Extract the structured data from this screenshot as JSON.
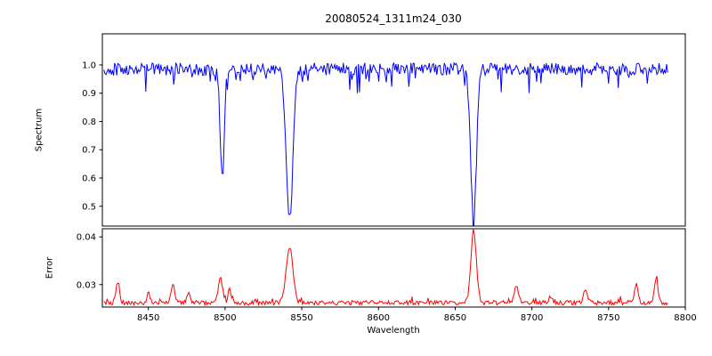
{
  "figure": {
    "title": "20080524_1311m24_030",
    "xlabel": "Wavelength",
    "background": "#ffffff",
    "frame_color": "#000000"
  },
  "x_axis": {
    "label": "Wavelength",
    "tick_values": [
      8450,
      8500,
      8550,
      8600,
      8650,
      8700,
      8750,
      8800
    ],
    "tick_labels": [
      "8450",
      "8500",
      "8550",
      "8600",
      "8650",
      "8700",
      "8750",
      "8800"
    ]
  },
  "chart_data": [
    {
      "type": "line",
      "panel": "spectrum",
      "ylabel": "Spectrum",
      "color": "#0000ff",
      "xlim": [
        8420,
        8800
      ],
      "ylim": [
        0.43,
        1.11
      ],
      "ytick_values": [
        0.5,
        0.6,
        0.7,
        0.8,
        0.9,
        1.0
      ],
      "ytick_labels": [
        "0.5",
        "0.6",
        "0.7",
        "0.8",
        "0.9",
        "1.0"
      ],
      "x_start": 8421,
      "x_end": 8789,
      "x_step": 0.7,
      "continuum": 0.985,
      "noise_amplitude": 0.045,
      "dip_probability": 0.1,
      "dip_max": 0.09,
      "absorption_lines": [
        {
          "center": 8498,
          "depth": 0.35,
          "width": 1.3
        },
        {
          "center": 8542,
          "depth": 0.53,
          "width": 2.2
        },
        {
          "center": 8662,
          "depth": 0.52,
          "width": 1.9
        }
      ]
    },
    {
      "type": "line",
      "panel": "error",
      "ylabel": "Error",
      "color": "#ff0000",
      "xlim": [
        8420,
        8800
      ],
      "ylim": [
        0.0253,
        0.0417
      ],
      "ytick_values": [
        0.03,
        0.04
      ],
      "ytick_labels": [
        "0.03",
        "0.04"
      ],
      "x_start": 8421,
      "x_end": 8789,
      "x_step": 0.7,
      "baseline": 0.0262,
      "noise_amplitude": 0.0009,
      "spike_probability": 0.06,
      "spike_max": 0.0012,
      "peaks": [
        {
          "center": 8430,
          "amp": 0.0045,
          "width": 1.2
        },
        {
          "center": 8450,
          "amp": 0.002,
          "width": 1.0
        },
        {
          "center": 8466,
          "amp": 0.004,
          "width": 1.2
        },
        {
          "center": 8476,
          "amp": 0.002,
          "width": 1.0
        },
        {
          "center": 8497,
          "amp": 0.005,
          "width": 1.5
        },
        {
          "center": 8503,
          "amp": 0.003,
          "width": 1.0
        },
        {
          "center": 8542,
          "amp": 0.0115,
          "width": 2.2
        },
        {
          "center": 8662,
          "amp": 0.015,
          "width": 1.8
        },
        {
          "center": 8690,
          "amp": 0.0035,
          "width": 1.3
        },
        {
          "center": 8712,
          "amp": 0.0015,
          "width": 1.0
        },
        {
          "center": 8735,
          "amp": 0.003,
          "width": 1.2
        },
        {
          "center": 8768,
          "amp": 0.004,
          "width": 1.2
        },
        {
          "center": 8781,
          "amp": 0.005,
          "width": 1.2
        }
      ]
    }
  ]
}
